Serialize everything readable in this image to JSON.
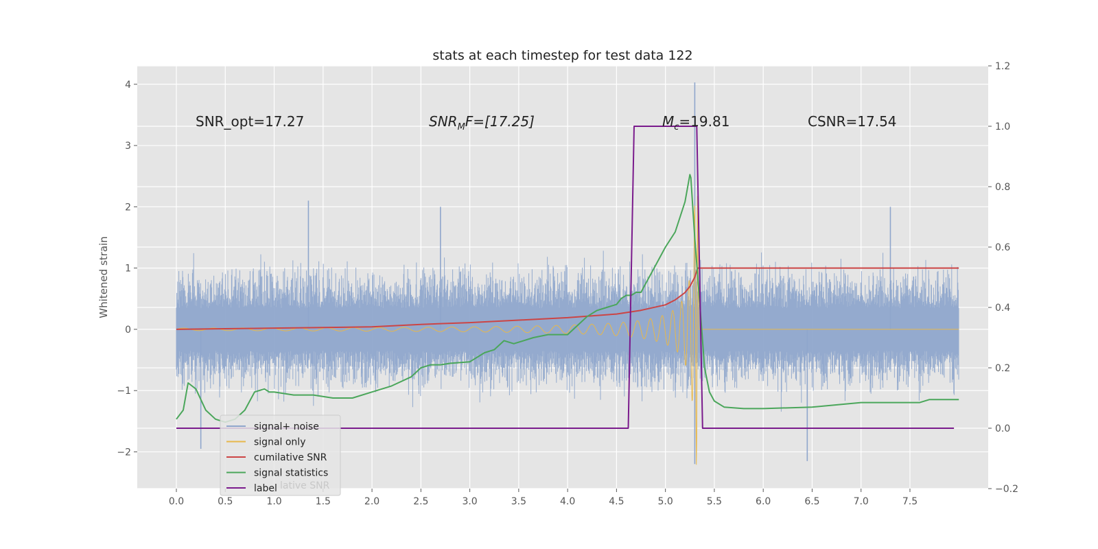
{
  "chart_data": {
    "type": "line",
    "title": "stats at each timestep for test data 122",
    "ylabel_left": "Whitened strain",
    "ylabel_right": "",
    "xlabel": "",
    "xlim": [
      -0.4,
      8.3
    ],
    "ylim_left": [
      -2.6,
      4.3
    ],
    "ylim_right": [
      -0.2,
      1.2
    ],
    "grid": true,
    "xticks": [
      0.0,
      0.5,
      1.0,
      1.5,
      2.0,
      2.5,
      3.0,
      3.5,
      4.0,
      4.5,
      5.0,
      5.5,
      6.0,
      6.5,
      7.0,
      7.5
    ],
    "xtick_labels": [
      "0.0",
      "0.5",
      "1.0",
      "1.5",
      "2.0",
      "2.5",
      "3.0",
      "3.5",
      "4.0",
      "4.5",
      "5.0",
      "5.5",
      "6.0",
      "6.5",
      "7.0",
      "7.5"
    ],
    "yticks_left": [
      -2,
      -1,
      0,
      1,
      2,
      3,
      4
    ],
    "ytick_labels_left": [
      "−2",
      "−1",
      "0",
      "1",
      "2",
      "3",
      "4"
    ],
    "yticks_right": [
      -0.2,
      0.0,
      0.2,
      0.4,
      0.6,
      0.8,
      1.0,
      1.2
    ],
    "ytick_labels_right": [
      "−0.2",
      "0.0",
      "0.2",
      "0.4",
      "0.6",
      "0.8",
      "1.0",
      "1.2"
    ],
    "annotations": {
      "snr_opt": "SNR_opt=17.27",
      "snr_mf_base": "SNR",
      "snr_mf_sub": "M",
      "snr_mf_rest": "F=[17.25]",
      "mc_base": "M",
      "mc_sub": "c",
      "mc_rest": "=19.81",
      "csnr": "CSNR=17.54"
    },
    "legend_position": "lower-left",
    "legend_entries": [
      "signal+ noise",
      "signal only",
      "cumilative SNR",
      "signal statistics",
      "label"
    ],
    "legend_hidden_text": "lative SNR",
    "colors": {
      "noise": "#8fa6cc",
      "signal": "#e8b84a",
      "cumsnr": "#cc4444",
      "stats": "#4aa65a",
      "label": "#7a1a8c",
      "plot_bg": "#e5e5e5",
      "grid": "#ffffff"
    },
    "series": [
      {
        "name": "cumilative SNR",
        "axis": "left",
        "x": [
          0.0,
          0.5,
          1.0,
          1.5,
          2.0,
          2.5,
          3.0,
          3.5,
          4.0,
          4.5,
          4.75,
          5.0,
          5.1,
          5.2,
          5.25,
          5.3,
          5.33,
          8.0
        ],
        "y": [
          0.0,
          0.01,
          0.02,
          0.03,
          0.04,
          0.08,
          0.11,
          0.15,
          0.19,
          0.25,
          0.31,
          0.4,
          0.48,
          0.6,
          0.7,
          0.85,
          1.0,
          1.0
        ]
      },
      {
        "name": "signal statistics",
        "axis": "right",
        "x": [
          0.0,
          0.07,
          0.12,
          0.2,
          0.3,
          0.4,
          0.5,
          0.6,
          0.7,
          0.8,
          0.9,
          0.95,
          1.0,
          1.2,
          1.4,
          1.6,
          1.8,
          2.0,
          2.2,
          2.4,
          2.5,
          2.6,
          2.7,
          2.8,
          3.0,
          3.05,
          3.15,
          3.25,
          3.35,
          3.45,
          3.55,
          3.65,
          3.8,
          4.0,
          4.1,
          4.2,
          4.3,
          4.4,
          4.5,
          4.55,
          4.6,
          4.65,
          4.7,
          4.75,
          4.8,
          4.85,
          5.0,
          5.1,
          5.2,
          5.25,
          5.26,
          5.3,
          5.35,
          5.4,
          5.45,
          5.5,
          5.6,
          5.8,
          6.0,
          6.5,
          7.0,
          7.1,
          7.5,
          7.6,
          7.7,
          8.0
        ],
        "y": [
          0.03,
          0.06,
          0.15,
          0.13,
          0.06,
          0.03,
          0.02,
          0.03,
          0.06,
          0.12,
          0.13,
          0.12,
          0.12,
          0.11,
          0.11,
          0.1,
          0.1,
          0.12,
          0.14,
          0.17,
          0.2,
          0.21,
          0.21,
          0.215,
          0.22,
          0.23,
          0.25,
          0.26,
          0.29,
          0.28,
          0.29,
          0.3,
          0.31,
          0.31,
          0.34,
          0.37,
          0.39,
          0.4,
          0.41,
          0.43,
          0.44,
          0.44,
          0.45,
          0.45,
          0.48,
          0.51,
          0.6,
          0.65,
          0.75,
          0.84,
          0.83,
          0.63,
          0.42,
          0.2,
          0.12,
          0.09,
          0.07,
          0.065,
          0.065,
          0.07,
          0.085,
          0.085,
          0.085,
          0.085,
          0.095,
          0.095
        ]
      },
      {
        "name": "label",
        "axis": "right",
        "x": [
          0.0,
          4.62,
          4.68,
          5.32,
          5.38,
          7.95
        ],
        "y": [
          0,
          0,
          1,
          1,
          0,
          0
        ]
      }
    ],
    "noise_band": {
      "name": "signal+ noise",
      "axis": "left",
      "x_range": [
        0.0,
        8.0
      ],
      "typical_min": -1.5,
      "typical_max": 1.6,
      "peaks": [
        {
          "x": 1.35,
          "y": 2.1
        },
        {
          "x": 5.3,
          "y": 4.03
        },
        {
          "x": 5.3,
          "y": -2.2
        },
        {
          "x": 6.45,
          "y": -2.15
        },
        {
          "x": 0.25,
          "y": -1.95
        },
        {
          "x": 7.3,
          "y": 2.0
        },
        {
          "x": 2.7,
          "y": 2.0
        }
      ]
    },
    "chirp": {
      "name": "signal only",
      "axis": "left",
      "x_range": [
        0.0,
        5.33
      ],
      "start_amplitude": 0.02,
      "end_amplitude": 2.25,
      "merger_time": 5.33
    }
  }
}
